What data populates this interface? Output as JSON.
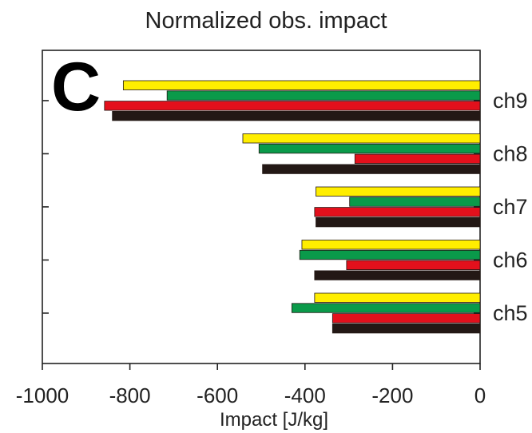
{
  "chart_data": {
    "type": "bar",
    "orientation": "horizontal",
    "title": "Normalized obs. impact",
    "panel_label": "C",
    "xlabel": "Impact [J/kg]",
    "ylabel": "",
    "xlim": [
      -1000,
      0
    ],
    "x_ticks": [
      "-1000",
      "-800",
      "-600",
      "-400",
      "-200",
      "0"
    ],
    "x_tick_values": [
      -1000,
      -800,
      -600,
      -400,
      -200,
      0
    ],
    "categories": [
      "ch9",
      "ch8",
      "ch7",
      "ch6",
      "ch5"
    ],
    "legend": "none",
    "grid": false,
    "series": [
      {
        "color": "#ffee00",
        "values": [
          -815,
          -542,
          -375,
          -407,
          -378
        ]
      },
      {
        "color": "#0a9a4a",
        "values": [
          -715,
          -505,
          -298,
          -412,
          -430
        ]
      },
      {
        "color": "#e3101c",
        "values": [
          -858,
          -286,
          -378,
          -305,
          -337
        ]
      },
      {
        "color": "#231815",
        "values": [
          -840,
          -497,
          -375,
          -378,
          -337
        ]
      }
    ]
  }
}
